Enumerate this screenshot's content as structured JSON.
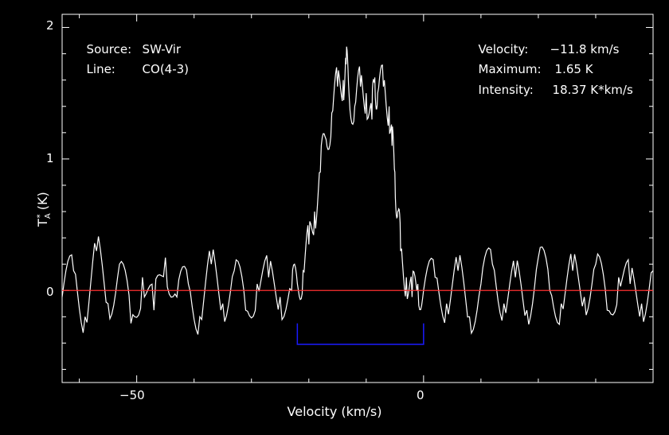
{
  "header": {
    "source_label": "Source:",
    "source_value": "SW-Vir",
    "line_label": "Line:",
    "line_value": "CO(4-3)",
    "velocity_label": "Velocity:",
    "velocity_value": "−11.8 km/s",
    "maximum_label": "Maximum:",
    "maximum_value": "1.65 K",
    "intensity_label": "Intensity:",
    "intensity_value": "18.37 K*km/s"
  },
  "axes": {
    "xlabel": "Velocity (km/s)",
    "ylabel_main": "T",
    "ylabel_sup": "*",
    "ylabel_sub": "A",
    "ylabel_unit": " (K)",
    "xticks": [
      "−50",
      "0"
    ],
    "yticks": [
      "0",
      "1",
      "2"
    ]
  },
  "colors": {
    "background": "#000000",
    "frame": "#ffffff",
    "spectrum": "#ffffff",
    "baseline": "#ff3030",
    "window": "#1a1aff"
  },
  "chart_data": {
    "type": "line",
    "title": "",
    "xlabel": "Velocity (km/s)",
    "ylabel": "T_A* (K)",
    "xlim": [
      -63,
      40
    ],
    "ylim": [
      -0.7,
      2.1
    ],
    "grid": false,
    "baseline_y": 0,
    "integration_window": {
      "x_start": -22,
      "x_end": 0,
      "y_level": -0.41
    },
    "series": [
      {
        "values_description": "",
        "x": [
          -63,
          -61,
          -59,
          -57,
          -55,
          -53,
          -51,
          -49,
          -47,
          -45,
          -43,
          -41,
          -39,
          -37,
          -35,
          -33,
          -31,
          -29,
          -27,
          -25,
          -23,
          -22,
          -21,
          -20,
          -19,
          -18,
          -17,
          -16,
          -15,
          -14,
          -13.5,
          -13,
          -12,
          -11,
          -10,
          -9,
          -8.5,
          -8,
          -7,
          -6,
          -5.5,
          -5,
          -4.5,
          -4,
          -3,
          -2,
          -1,
          0,
          2,
          4,
          6,
          8,
          10,
          12,
          14,
          16,
          18,
          20,
          22,
          24,
          26,
          28,
          30,
          32,
          34,
          36,
          38,
          40
        ],
        "y": [
          -0.05,
          0.15,
          -0.2,
          0.3,
          -0.1,
          0.2,
          -0.25,
          0.1,
          -0.15,
          0.25,
          -0.05,
          0.05,
          -0.2,
          0.2,
          -0.1,
          0.15,
          -0.15,
          0.05,
          0.1,
          -0.05,
          0.0,
          0.05,
          0.15,
          0.35,
          0.6,
          0.9,
          1.15,
          1.35,
          1.55,
          1.6,
          1.72,
          1.5,
          1.4,
          1.55,
          1.5,
          1.3,
          1.62,
          1.5,
          1.55,
          1.4,
          1.1,
          0.9,
          0.6,
          0.3,
          0.1,
          -0.05,
          0.05,
          0.0,
          0.1,
          -0.1,
          0.15,
          -0.2,
          0.05,
          0.2,
          -0.1,
          0.1,
          -0.15,
          0.25,
          0.0,
          -0.1,
          0.15,
          -0.05,
          0.2,
          -0.15,
          0.1,
          0.05,
          -0.1,
          0.15
        ]
      }
    ]
  }
}
